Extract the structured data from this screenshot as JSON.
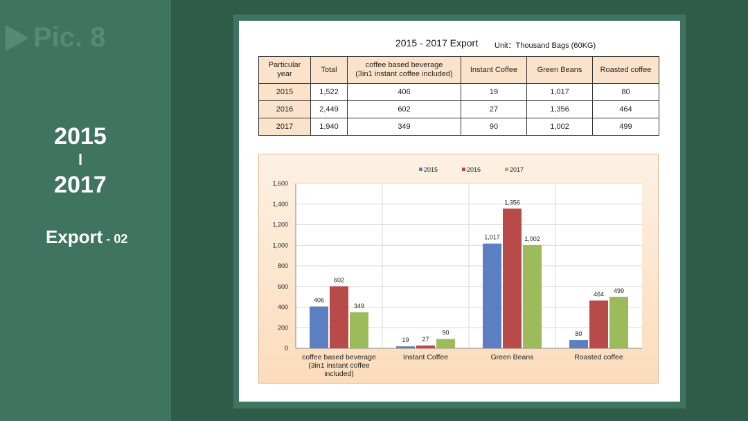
{
  "sidebar": {
    "pic_label": "Pic. 8",
    "year_start": "2015",
    "year_separator": "l",
    "year_end": "2017",
    "section_title": "Export",
    "section_suffix": " - 02"
  },
  "table": {
    "title": "2015 - 2017 Export",
    "unit": "Unit：Thousand Bags (60KG)",
    "headers": [
      "Particular\nyear",
      "Total",
      "coffee based beverage\n(3in1 instant coffee included)",
      "Instant Coffee",
      "Green Beans",
      "Roasted coffee"
    ],
    "rows": [
      [
        "2015",
        "1,522",
        "406",
        "19",
        "1,017",
        "80"
      ],
      [
        "2016",
        "2,449",
        "602",
        "27",
        "1,356",
        "464"
      ],
      [
        "2017",
        "1,940",
        "349",
        "90",
        "1,002",
        "499"
      ]
    ]
  },
  "chart_data": {
    "type": "bar",
    "categories": [
      "coffee based beverage\n(3in1 instant coffee\nincluded)",
      "Instant Coffee",
      "Green Beans",
      "Roasted coffee"
    ],
    "series": [
      {
        "name": "2015",
        "values": [
          406,
          19,
          1017,
          80
        ],
        "color": "#5b7fc0"
      },
      {
        "name": "2016",
        "values": [
          602,
          27,
          1356,
          464
        ],
        "color": "#b84a4a"
      },
      {
        "name": "2017",
        "values": [
          349,
          90,
          1002,
          499
        ],
        "color": "#9cbb5a"
      }
    ],
    "yticks": [
      "0",
      "200",
      "400",
      "600",
      "800",
      "1,000",
      "1,200",
      "1,400",
      "1,600"
    ],
    "ylim": [
      0,
      1600
    ],
    "grid": true,
    "legend_position": "top-center"
  }
}
